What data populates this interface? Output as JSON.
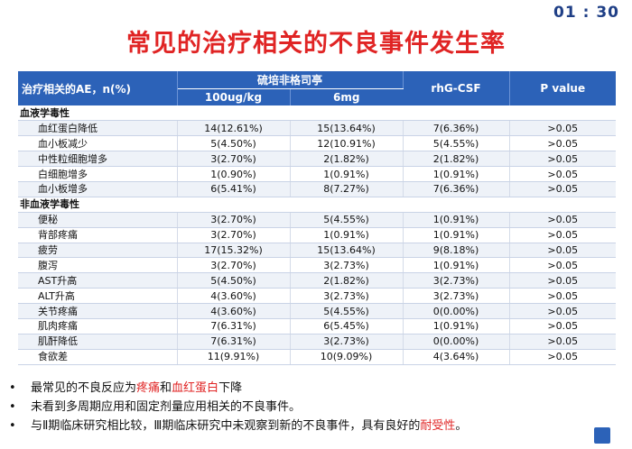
{
  "timer": "01 : 30",
  "title": "常见的治疗相关的不良事件发生率",
  "table": {
    "col_first": "治疗相关的AE，n(%)",
    "group_label": "硫培非格司亭",
    "sub1": "100ug/kg",
    "sub2": "6mg",
    "col_rhg": "rhG-CSF",
    "col_p": "P value",
    "sections": [
      {
        "label": "血液学毒性",
        "rows": [
          {
            "name": "血红蛋白降低",
            "a": "14(12.61%)",
            "b": "15(13.64%)",
            "c": "7(6.36%)",
            "p": ">0.05"
          },
          {
            "name": "血小板减少",
            "a": "5(4.50%)",
            "b": "12(10.91%)",
            "c": "5(4.55%)",
            "p": ">0.05"
          },
          {
            "name": "中性粒细胞增多",
            "a": "3(2.70%)",
            "b": "2(1.82%)",
            "c": "2(1.82%)",
            "p": ">0.05"
          },
          {
            "name": "白细胞增多",
            "a": "1(0.90%)",
            "b": "1(0.91%)",
            "c": "1(0.91%)",
            "p": ">0.05"
          },
          {
            "name": "血小板增多",
            "a": "6(5.41%)",
            "b": "8(7.27%)",
            "c": "7(6.36%)",
            "p": ">0.05"
          }
        ]
      },
      {
        "label": "非血液学毒性",
        "rows": [
          {
            "name": "便秘",
            "a": "3(2.70%)",
            "b": "5(4.55%)",
            "c": "1(0.91%)",
            "p": ">0.05"
          },
          {
            "name": "背部疼痛",
            "a": "3(2.70%)",
            "b": "1(0.91%)",
            "c": "1(0.91%)",
            "p": ">0.05"
          },
          {
            "name": "疲劳",
            "a": "17(15.32%)",
            "b": "15(13.64%)",
            "c": "9(8.18%)",
            "p": ">0.05"
          },
          {
            "name": "腹泻",
            "a": "3(2.70%)",
            "b": "3(2.73%)",
            "c": "1(0.91%)",
            "p": ">0.05"
          },
          {
            "name": "AST升高",
            "a": "5(4.50%)",
            "b": "2(1.82%)",
            "c": "3(2.73%)",
            "p": ">0.05"
          },
          {
            "name": "ALT升高",
            "a": "4(3.60%)",
            "b": "3(2.73%)",
            "c": "3(2.73%)",
            "p": ">0.05"
          },
          {
            "name": "关节疼痛",
            "a": "4(3.60%)",
            "b": "5(4.55%)",
            "c": "0(0.00%)",
            "p": ">0.05"
          },
          {
            "name": "肌肉疼痛",
            "a": "7(6.31%)",
            "b": "6(5.45%)",
            "c": "1(0.91%)",
            "p": ">0.05"
          },
          {
            "name": "肌酐降低",
            "a": "7(6.31%)",
            "b": "3(2.73%)",
            "c": "0(0.00%)",
            "p": ">0.05"
          },
          {
            "name": "食欲差",
            "a": "11(9.91%)",
            "b": "10(9.09%)",
            "c": "4(3.64%)",
            "p": ">0.05"
          }
        ]
      }
    ]
  },
  "notes": {
    "bullet": "•",
    "n1_pre": "最常见的不良反应为",
    "n1_hl1": "疼痛",
    "n1_mid": "和",
    "n1_hl2": "血红蛋白",
    "n1_post": "下降",
    "n2": "未看到多周期应用和固定剂量应用相关的不良事件。",
    "n3_pre": "与Ⅱ期临床研究相比较，Ⅲ期临床研究中未观察到新的不良事件，具有良好的",
    "n3_hl": "耐受性",
    "n3_post": "。"
  },
  "colors": {
    "title": "#e02424",
    "header_bg": "#2c62b8",
    "timer": "#1f3f86",
    "highlight": "#e02424"
  }
}
